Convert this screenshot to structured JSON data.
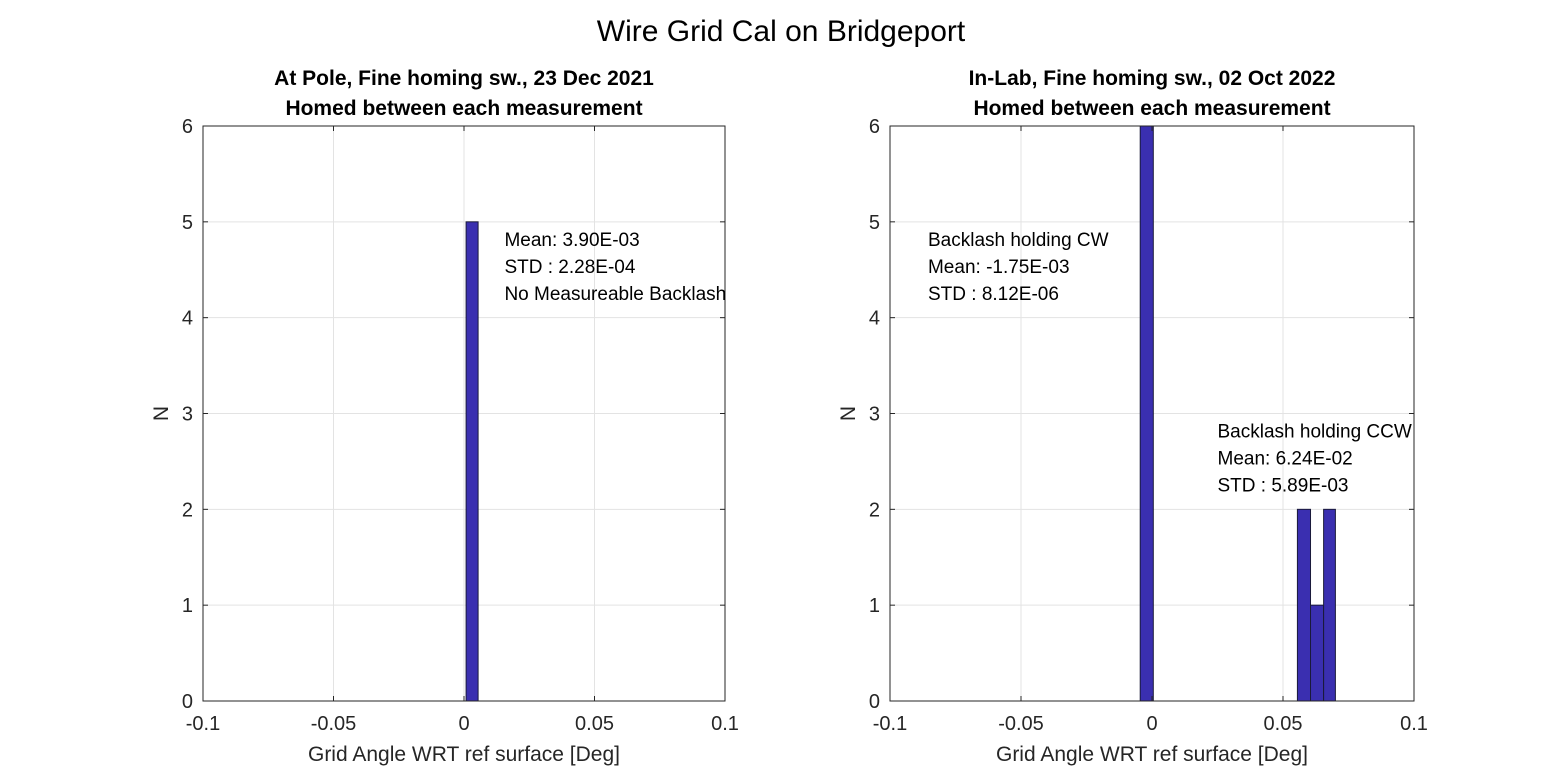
{
  "figure": {
    "title": "Wire Grid Cal on Bridgeport",
    "bar_color": "#3a2fb0",
    "bar_edge_color": "#1a1a3a"
  },
  "chart_data": [
    {
      "type": "bar",
      "title_lines": [
        "At Pole, Fine homing sw., 23 Dec 2021",
        "Homed between each measurement"
      ],
      "xlabel": "Grid Angle WRT ref surface [Deg]",
      "ylabel": "N",
      "xlim": [
        -0.1,
        0.1
      ],
      "ylim": [
        0,
        6
      ],
      "xticks": [
        -0.1,
        -0.05,
        0,
        0.05,
        0.1
      ],
      "xtick_labels": [
        "-0.1",
        "-0.05",
        "0",
        "0.05",
        "0.1"
      ],
      "yticks": [
        0,
        1,
        2,
        3,
        4,
        5,
        6
      ],
      "ytick_labels": [
        "0",
        "1",
        "2",
        "3",
        "4",
        "5",
        "6"
      ],
      "grid": true,
      "bins": [
        {
          "x0": 0.0008,
          "x1": 0.0054,
          "count": 5
        }
      ],
      "annotations": [
        {
          "x": 0.0155,
          "y": 4.75,
          "lines": [
            "Mean: 3.90E-03",
            "STD : 2.28E-04",
            "No Measureable Backlash"
          ]
        }
      ]
    },
    {
      "type": "bar",
      "title_lines": [
        "In-Lab, Fine homing sw., 02 Oct 2022",
        "Homed between each measurement"
      ],
      "xlabel": "Grid Angle WRT ref surface [Deg]",
      "ylabel": "N",
      "xlim": [
        -0.1,
        0.1
      ],
      "ylim": [
        0,
        6
      ],
      "xticks": [
        -0.1,
        -0.05,
        0,
        0.05,
        0.1
      ],
      "xtick_labels": [
        "-0.1",
        "-0.05",
        "0",
        "0.05",
        "0.1"
      ],
      "yticks": [
        0,
        1,
        2,
        3,
        4,
        5,
        6
      ],
      "ytick_labels": [
        "0",
        "1",
        "2",
        "3",
        "4",
        "5",
        "6"
      ],
      "grid": true,
      "bins": [
        {
          "x0": -0.0045,
          "x1": 0.0005,
          "count": 6
        },
        {
          "x0": 0.0555,
          "x1": 0.0605,
          "count": 2
        },
        {
          "x0": 0.0605,
          "x1": 0.0655,
          "count": 1
        },
        {
          "x0": 0.0655,
          "x1": 0.07,
          "count": 2
        }
      ],
      "annotations": [
        {
          "x": -0.0855,
          "y": 4.75,
          "lines": [
            "Backlash holding CW",
            "Mean: -1.75E-03",
            "STD : 8.12E-06"
          ]
        },
        {
          "x": 0.025,
          "y": 2.75,
          "lines": [
            "Backlash holding CCW",
            "Mean: 6.24E-02",
            "STD : 5.89E-03"
          ]
        }
      ]
    }
  ]
}
